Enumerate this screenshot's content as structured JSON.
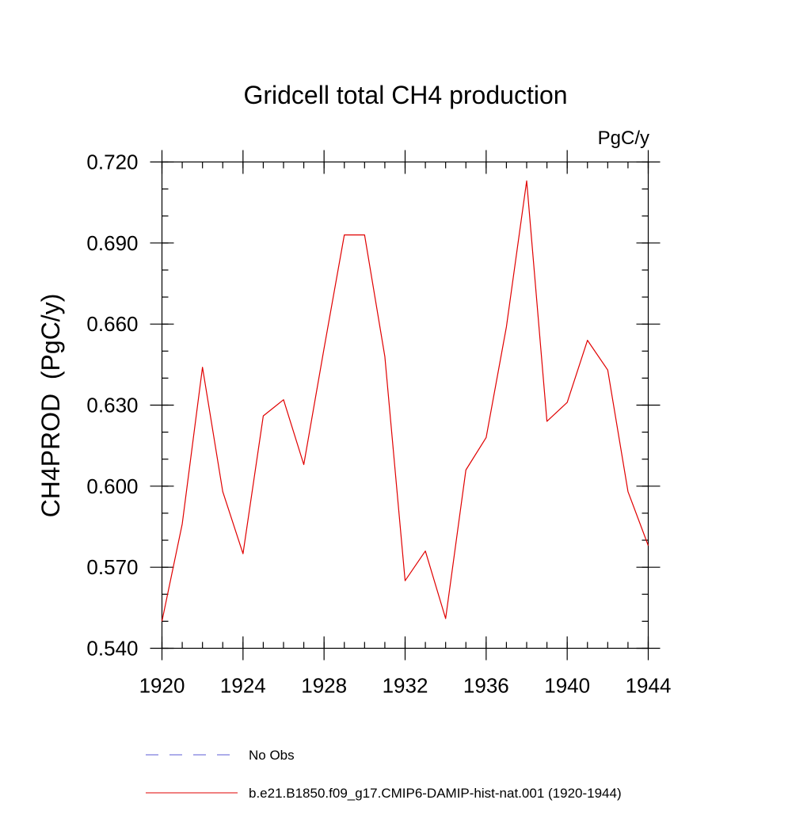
{
  "chart_data": {
    "type": "line",
    "title": "Gridcell total CH4 production",
    "units_label": "PgC/y",
    "ylabel": "CH4PROD  (PgC/y)",
    "xlabel": "",
    "xlim": [
      1920,
      1944
    ],
    "ylim": [
      0.54,
      0.72
    ],
    "x_ticks": [
      1920,
      1924,
      1928,
      1932,
      1936,
      1940,
      1944
    ],
    "x_tick_labels": [
      "1920",
      "1924",
      "1928",
      "1932",
      "1936",
      "1940",
      "1944"
    ],
    "y_ticks": [
      0.54,
      0.57,
      0.6,
      0.63,
      0.66,
      0.69,
      0.72
    ],
    "y_tick_labels": [
      "0.540",
      "0.570",
      "0.600",
      "0.630",
      "0.660",
      "0.690",
      "0.720"
    ],
    "x_minor_step": 1,
    "y_minor_step": 0.01,
    "grid": false,
    "legend_position": "bottom",
    "series": [
      {
        "name": "No Obs",
        "color": "#5b5bd6",
        "dash": "dashed",
        "x": [],
        "y": []
      },
      {
        "name": "b.e21.B1850.f09_g17.CMIP6-DAMIP-hist-nat.001 (1920-1944)",
        "color": "#e00000",
        "dash": "solid",
        "x": [
          1920,
          1921,
          1922,
          1923,
          1924,
          1925,
          1926,
          1927,
          1928,
          1929,
          1930,
          1931,
          1932,
          1933,
          1934,
          1935,
          1936,
          1937,
          1938,
          1939,
          1940,
          1941,
          1942,
          1943,
          1944
        ],
        "y": [
          0.55,
          0.586,
          0.644,
          0.598,
          0.575,
          0.626,
          0.632,
          0.608,
          0.651,
          0.693,
          0.693,
          0.648,
          0.565,
          0.576,
          0.551,
          0.606,
          0.618,
          0.659,
          0.713,
          0.624,
          0.631,
          0.654,
          0.643,
          0.598,
          0.578
        ]
      }
    ]
  }
}
